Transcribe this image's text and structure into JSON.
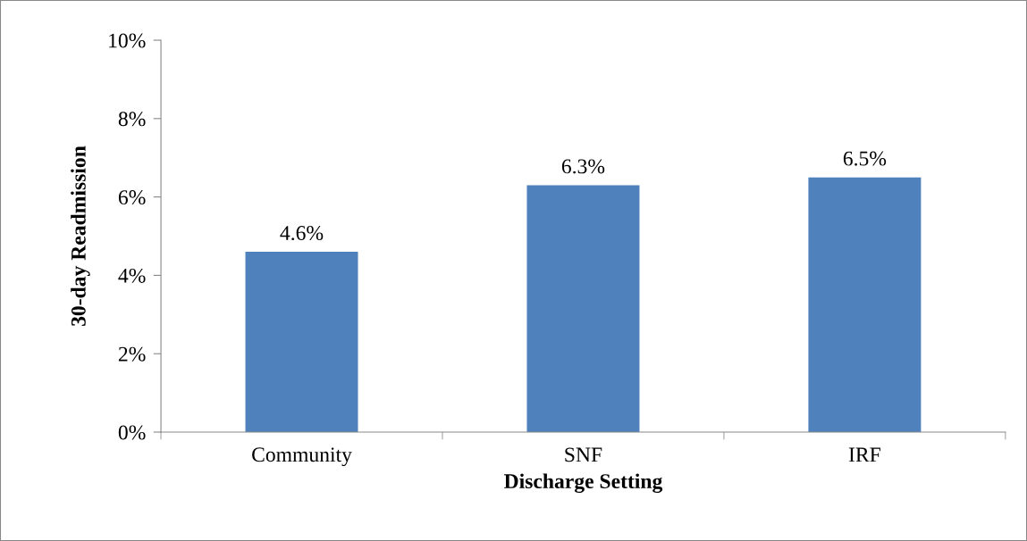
{
  "chart_data": {
    "type": "bar",
    "xlabel": "Discharge Setting",
    "ylabel": "30-day Readmission",
    "categories": [
      "Community",
      "SNF",
      "IRF"
    ],
    "values": [
      4.6,
      6.3,
      6.5
    ],
    "value_labels": [
      "4.6%",
      "6.3%",
      "6.5%"
    ],
    "color": "#4f81bd",
    "ylim": [
      0,
      10
    ],
    "yticks": [
      {
        "value": 0,
        "label": "0%"
      },
      {
        "value": 2,
        "label": "2%"
      },
      {
        "value": 4,
        "label": "4%"
      },
      {
        "value": 6,
        "label": "6%"
      },
      {
        "value": 8,
        "label": "8%"
      },
      {
        "value": 10,
        "label": "10%"
      }
    ],
    "grid": false,
    "legend": false
  }
}
